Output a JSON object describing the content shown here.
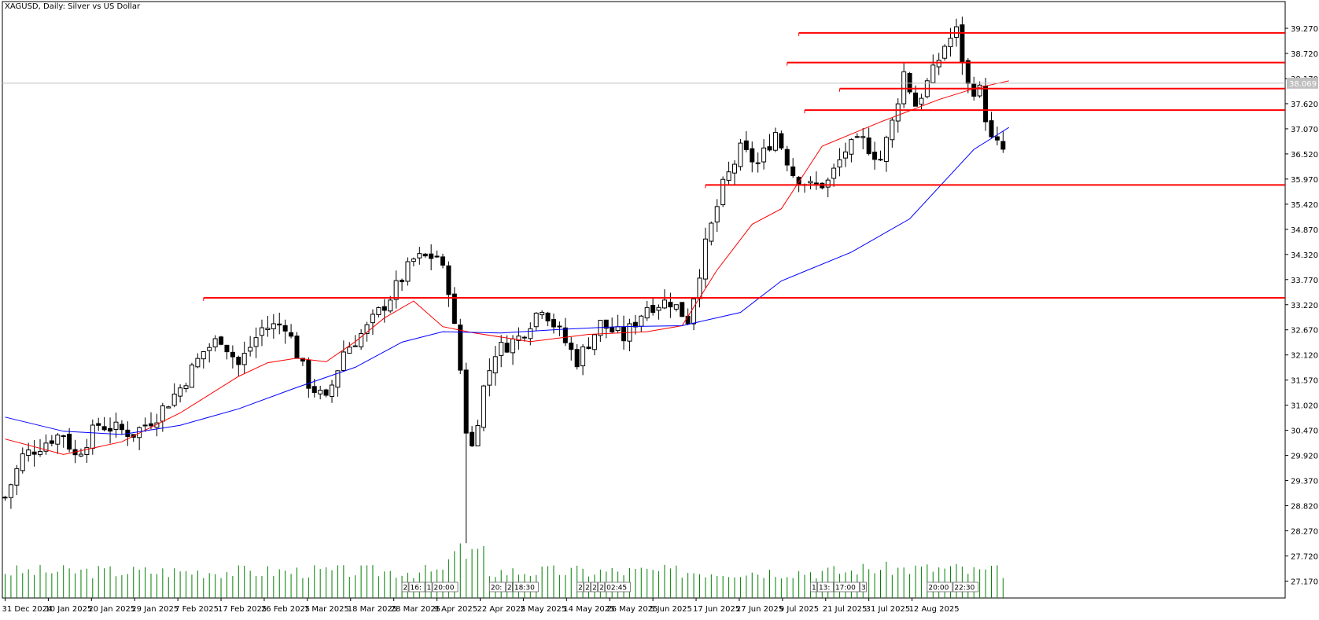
{
  "chart_data": {
    "type": "candlestick",
    "title": "XAGUSD, Daily:  Silver vs US Dollar",
    "current_price": 38.069,
    "x_labels": [
      "31 Dec 2024",
      "10 Jan 2025",
      "20 Jan 2025",
      "29 Jan 2025",
      "7 Feb 2025",
      "17 Feb 2025",
      "26 Feb 2025",
      "7 Mar 2025",
      "18 Mar 2025",
      "28 Mar 2025",
      "9 Apr 2025",
      "22 Apr 2025",
      "2 May 2025",
      "14 May 2025",
      "26 May 2025",
      "5 Jun 2025",
      "17 Jun 2025",
      "27 Jun 2025",
      "9 Jul 2025",
      "21 Jul 2025",
      "31 Jul 2025",
      "12 Aug 2025"
    ],
    "y_ticks": [
      "39.270",
      "38.720",
      "38.170",
      "37.620",
      "37.070",
      "36.520",
      "35.970",
      "35.420",
      "34.870",
      "34.320",
      "33.770",
      "33.220",
      "32.670",
      "32.120",
      "31.570",
      "31.020",
      "30.470",
      "29.920",
      "29.370",
      "28.820",
      "28.270",
      "27.720",
      "27.170"
    ],
    "y_range": [
      26.8,
      39.58
    ],
    "horizontal_levels": [
      {
        "price": 39.17,
        "from_bar": 136
      },
      {
        "price": 38.52,
        "from_bar": 134
      },
      {
        "price": 37.95,
        "from_bar": 143
      },
      {
        "price": 37.48,
        "from_bar": 137
      },
      {
        "price": 35.84,
        "from_bar": 120
      },
      {
        "price": 33.37,
        "from_bar": 34
      }
    ],
    "moving_averages": [
      {
        "color": "#ff0000",
        "points": [
          [
            0,
            30.28
          ],
          [
            10,
            29.94
          ],
          [
            20,
            30.22
          ],
          [
            30,
            30.85
          ],
          [
            40,
            31.65
          ],
          [
            45,
            31.95
          ],
          [
            50,
            32.05
          ],
          [
            55,
            31.97
          ],
          [
            60,
            32.41
          ],
          [
            65,
            32.93
          ],
          [
            70,
            33.3
          ],
          [
            75,
            32.74
          ],
          [
            80,
            32.61
          ],
          [
            90,
            32.41
          ],
          [
            100,
            32.57
          ],
          [
            110,
            32.63
          ],
          [
            116,
            32.76
          ],
          [
            122,
            33.98
          ],
          [
            128,
            34.98
          ],
          [
            133,
            35.32
          ],
          [
            140,
            36.69
          ],
          [
            150,
            37.22
          ],
          [
            160,
            37.71
          ],
          [
            166,
            37.95
          ],
          [
            172,
            38.12
          ]
        ]
      },
      {
        "color": "#0000ff",
        "points": [
          [
            0,
            30.76
          ],
          [
            10,
            30.45
          ],
          [
            20,
            30.38
          ],
          [
            30,
            30.58
          ],
          [
            40,
            30.94
          ],
          [
            50,
            31.41
          ],
          [
            60,
            31.85
          ],
          [
            68,
            32.4
          ],
          [
            75,
            32.63
          ],
          [
            85,
            32.6
          ],
          [
            95,
            32.68
          ],
          [
            105,
            32.74
          ],
          [
            116,
            32.76
          ],
          [
            126,
            33.05
          ],
          [
            133,
            33.74
          ],
          [
            145,
            34.37
          ],
          [
            155,
            35.1
          ],
          [
            160,
            35.79
          ],
          [
            166,
            36.62
          ],
          [
            172,
            37.1
          ]
        ]
      }
    ],
    "volume_labels": [
      "2|16:|1|20:00",
      "20:|2|18:30",
      "2|2|2|2|02:45",
      "1|13:|17:00|3",
      "20:00|22:30"
    ]
  }
}
